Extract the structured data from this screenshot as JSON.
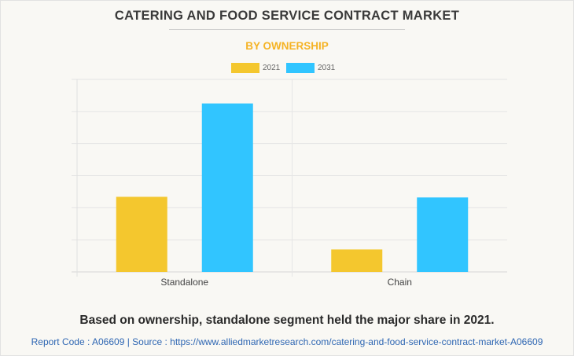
{
  "header": {
    "title": "CATERING AND FOOD SERVICE CONTRACT MARKET",
    "subtitle": "BY OWNERSHIP"
  },
  "chart_data": {
    "type": "bar",
    "categories": [
      "Standalone",
      "Chain"
    ],
    "series": [
      {
        "name": "2021",
        "color": "#f4c72e",
        "values": [
          2.34,
          0.7
        ]
      },
      {
        "name": "2031",
        "color": "#31c5ff",
        "values": [
          5.25,
          2.32
        ]
      }
    ],
    "ylim": [
      0,
      6
    ],
    "grid": true,
    "legend": "top",
    "xlabel": "",
    "ylabel": ""
  },
  "caption": "Based on ownership, standalone segment held the major share in 2021.",
  "footer": "Report Code : A06609  |  Source : https://www.alliedmarketresearch.com/catering-and-food-service-contract-market-A06609",
  "colors": {
    "subtitle": "#f5b324",
    "footer_link": "#2f67b3"
  }
}
